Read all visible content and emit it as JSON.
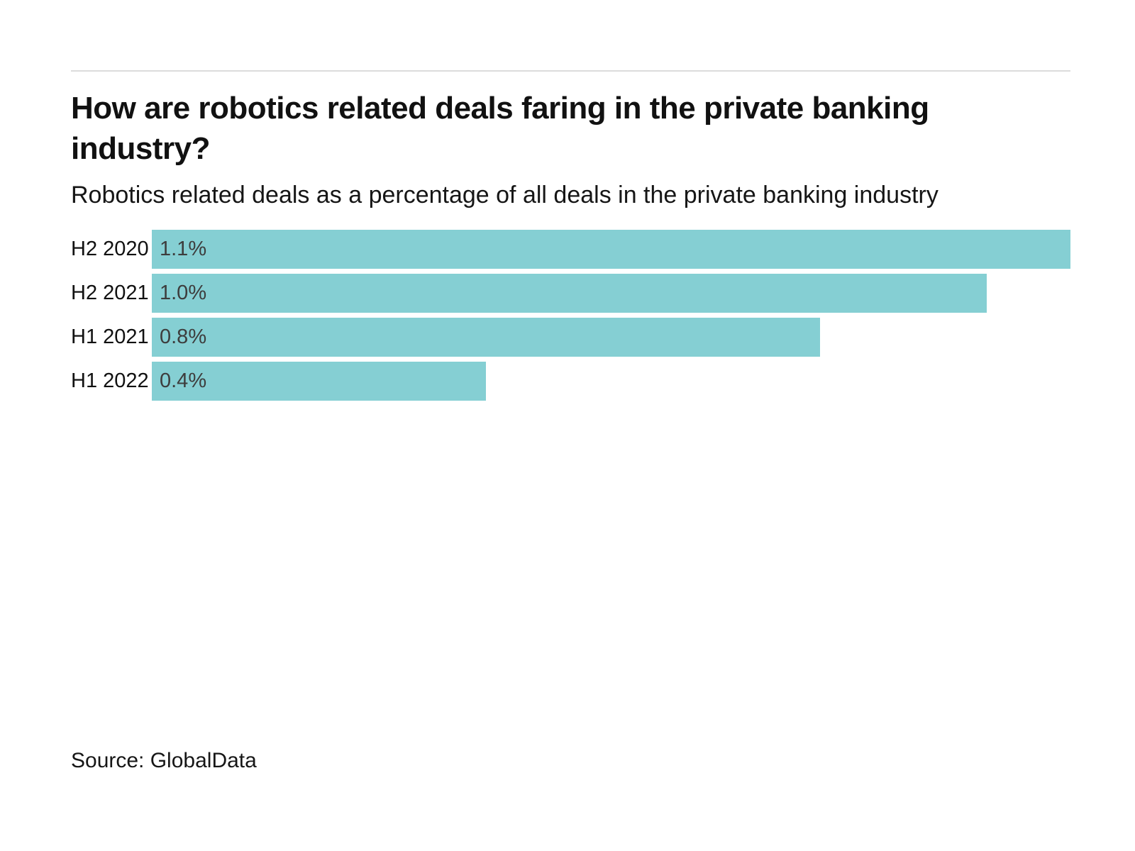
{
  "header": {
    "title": "How are robotics related deals faring in the private banking industry?",
    "subtitle": "Robotics related deals as a percentage of all deals in the private banking industry"
  },
  "chart_data": {
    "type": "bar",
    "orientation": "horizontal",
    "title": "How are robotics related deals faring in the private banking industry?",
    "subtitle": "Robotics related deals as a percentage of all deals in the private banking industry",
    "categories": [
      "H2 2020",
      "H2 2021",
      "H1 2021",
      "H1 2022"
    ],
    "values": [
      1.1,
      1.0,
      0.8,
      0.4
    ],
    "value_labels": [
      "1.1%",
      "1.0%",
      "0.8%",
      "0.4%"
    ],
    "xlim": [
      0,
      1.1
    ],
    "grid": false,
    "legend": false,
    "bar_color": "#85CFD3",
    "value_label_color": "#3d3d3d",
    "source": "Source: GlobalData"
  },
  "footer": {
    "source": "Source: GlobalData"
  },
  "colors": {
    "bar": "#85CFD3",
    "divider": "#dcdcdc",
    "title_text": "#111111",
    "body_text": "#161616",
    "value_text": "#3d3d3d"
  }
}
